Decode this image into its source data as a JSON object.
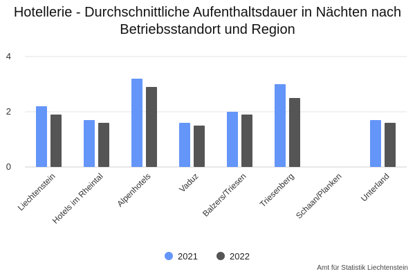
{
  "source": "Amt für Statistik Liechtenstein",
  "chart_data": {
    "type": "bar",
    "title": "Hotellerie - Durchschnittliche Aufenthaltsdauer in Nächten nach Betriebsstandort und Region",
    "categories": [
      "Liechtenstein",
      "Hotels im Rheintal",
      "Alpenhotels",
      "Vaduz",
      "Balzers/Triesen",
      "Triesenberg",
      "Schaan/Planken",
      "Unterland"
    ],
    "series": [
      {
        "name": "2021",
        "color": "#6495f8",
        "values": [
          2.2,
          1.7,
          3.2,
          1.6,
          2.0,
          3.0,
          null,
          1.7
        ]
      },
      {
        "name": "2022",
        "color": "#555555",
        "values": [
          1.9,
          1.6,
          2.9,
          1.5,
          1.9,
          2.5,
          null,
          1.6
        ]
      }
    ],
    "yticks": [
      0,
      2,
      4
    ],
    "ylim": [
      0,
      4
    ],
    "xlabel": "",
    "ylabel": "",
    "grid": true,
    "legend_position": "bottom"
  }
}
